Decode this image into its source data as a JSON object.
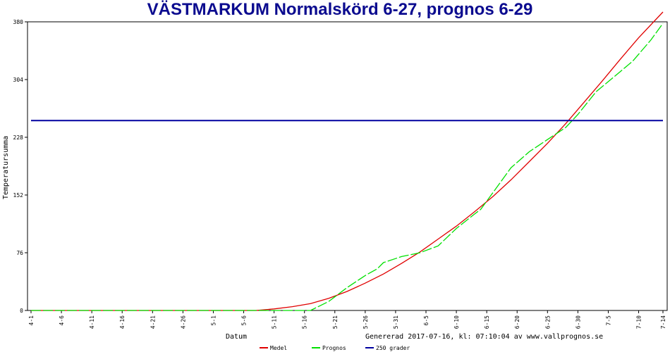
{
  "chart_data": {
    "type": "line",
    "title": "VÄSTMARKUM Normalskörd 6-27, prognos 6-29",
    "xlabel": "Datum",
    "ylabel": "Temperatursumma",
    "ylim": [
      0,
      380
    ],
    "yticks": [
      0,
      76,
      152,
      228,
      304,
      380
    ],
    "xlim": [
      "4-1",
      "7-14"
    ],
    "xticks": [
      "4-1",
      "4-6",
      "4-11",
      "4-16",
      "4-21",
      "4-26",
      "5-1",
      "5-6",
      "5-11",
      "5-16",
      "5-21",
      "5-26",
      "5-31",
      "6-5",
      "6-10",
      "6-15",
      "6-20",
      "6-25",
      "6-30",
      "7-5",
      "7-10",
      "7-14"
    ],
    "generated_text": "Genererad 2017-07-16, kl: 07:10:04 av www.vallprognos.se",
    "grid": false,
    "legend_position": "bottom",
    "series": [
      {
        "name": "Medel",
        "color": "#e00000",
        "style": "solid",
        "x": [
          "4-1",
          "5-8",
          "5-11",
          "5-14",
          "5-17",
          "5-20",
          "5-23",
          "5-26",
          "5-29",
          "6-1",
          "6-4",
          "6-7",
          "6-10",
          "6-13",
          "6-16",
          "6-19",
          "6-22",
          "6-25",
          "6-28",
          "7-1",
          "7-4",
          "7-7",
          "7-10",
          "7-14"
        ],
        "y": [
          0,
          0,
          2,
          5,
          9,
          16,
          25,
          36,
          48,
          62,
          77,
          94,
          111,
          130,
          150,
          172,
          196,
          220,
          246,
          274,
          302,
          331,
          359,
          393
        ]
      },
      {
        "name": "Prognos",
        "color": "#00e000",
        "style": "dashed",
        "x": [
          "4-1",
          "5-17",
          "5-20",
          "5-23",
          "5-26",
          "5-28",
          "5-29",
          "6-1",
          "6-4",
          "6-7",
          "6-10",
          "6-13",
          "6-14",
          "6-16",
          "6-19",
          "6-22",
          "6-25",
          "6-28",
          "6-30",
          "7-3",
          "7-6",
          "7-9",
          "7-12",
          "7-14"
        ],
        "y": [
          0,
          0,
          12,
          30,
          46,
          55,
          63,
          71,
          76,
          85,
          108,
          127,
          133,
          155,
          188,
          209,
          225,
          241,
          258,
          288,
          308,
          328,
          356,
          378
        ]
      },
      {
        "name": "250 grader",
        "color": "#0000a0",
        "style": "solid",
        "x": [
          "4-1",
          "7-14"
        ],
        "y": [
          250,
          250
        ]
      }
    ]
  }
}
